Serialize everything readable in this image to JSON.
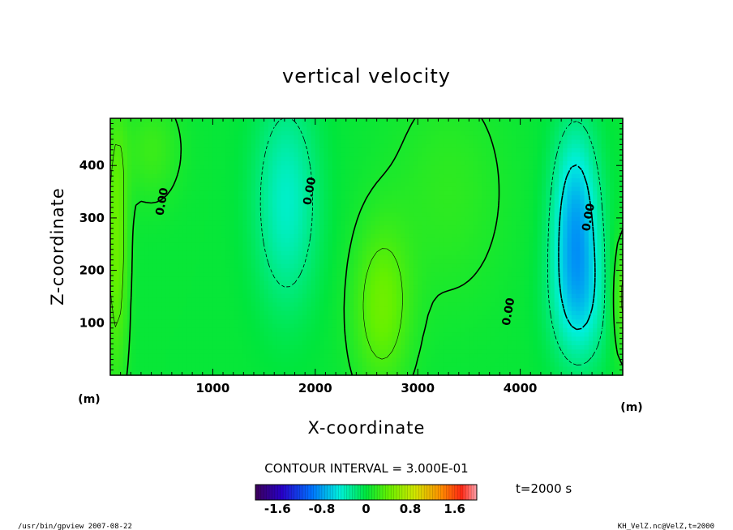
{
  "chart_data": {
    "type": "heatmap",
    "title": "vertical velocity",
    "xlabel": "X-coordinate",
    "ylabel": "Z-coordinate",
    "x_unit": "(m)",
    "y_unit": "(m)",
    "xlim": [
      0,
      5000
    ],
    "ylim": [
      0,
      490
    ],
    "x_ticks": [
      1000,
      2000,
      3000,
      4000
    ],
    "x_tick_labels": [
      "1000",
      "2000",
      "3000",
      "4000"
    ],
    "y_ticks": [
      100,
      200,
      300,
      400
    ],
    "y_tick_labels": [
      "100",
      "200",
      "300",
      "400"
    ],
    "contour_interval_text": "CONTOUR INTERVAL = 3.000E-01",
    "time_text": "t=2000 s",
    "colorbar": {
      "range": [
        -2.0,
        2.0
      ],
      "ticks": [
        -1.6,
        -0.8,
        0,
        0.8,
        1.6
      ],
      "tick_labels": [
        "-1.6",
        "-0.8",
        "0",
        "0.8",
        "1.6"
      ]
    },
    "contour_labels": [
      {
        "text": "0.00",
        "x": 540,
        "y": 330
      },
      {
        "text": "0.00",
        "x": 1980,
        "y": 350
      },
      {
        "text": "0.00",
        "x": 3920,
        "y": 120
      },
      {
        "text": "0.00",
        "x": 4700,
        "y": 300
      }
    ],
    "blobs": [
      {
        "x": 1720,
        "y": 330,
        "sx": 220,
        "sy": 140,
        "value": -0.45
      },
      {
        "x": 4540,
        "y": 300,
        "sx": 160,
        "sy": 120,
        "value": -0.75
      },
      {
        "x": 4580,
        "y": 140,
        "sx": 200,
        "sy": 90,
        "value": -0.45
      },
      {
        "x": 2650,
        "y": 130,
        "sx": 200,
        "sy": 110,
        "value": 0.4
      },
      {
        "x": 60,
        "y": 250,
        "sx": 80,
        "sy": 180,
        "value": 0.4
      },
      {
        "x": 5000,
        "y": 150,
        "sx": 90,
        "sy": 80,
        "value": 0.35
      },
      {
        "x": 400,
        "y": 430,
        "sx": 200,
        "sy": 70,
        "value": 0.2
      },
      {
        "x": 3300,
        "y": 350,
        "sx": 400,
        "sy": 150,
        "value": 0.15
      }
    ]
  },
  "footer": {
    "left": "/usr/bin/gpview   2007-08-22",
    "right": "KH_VelZ.nc@VelZ,t=2000"
  }
}
